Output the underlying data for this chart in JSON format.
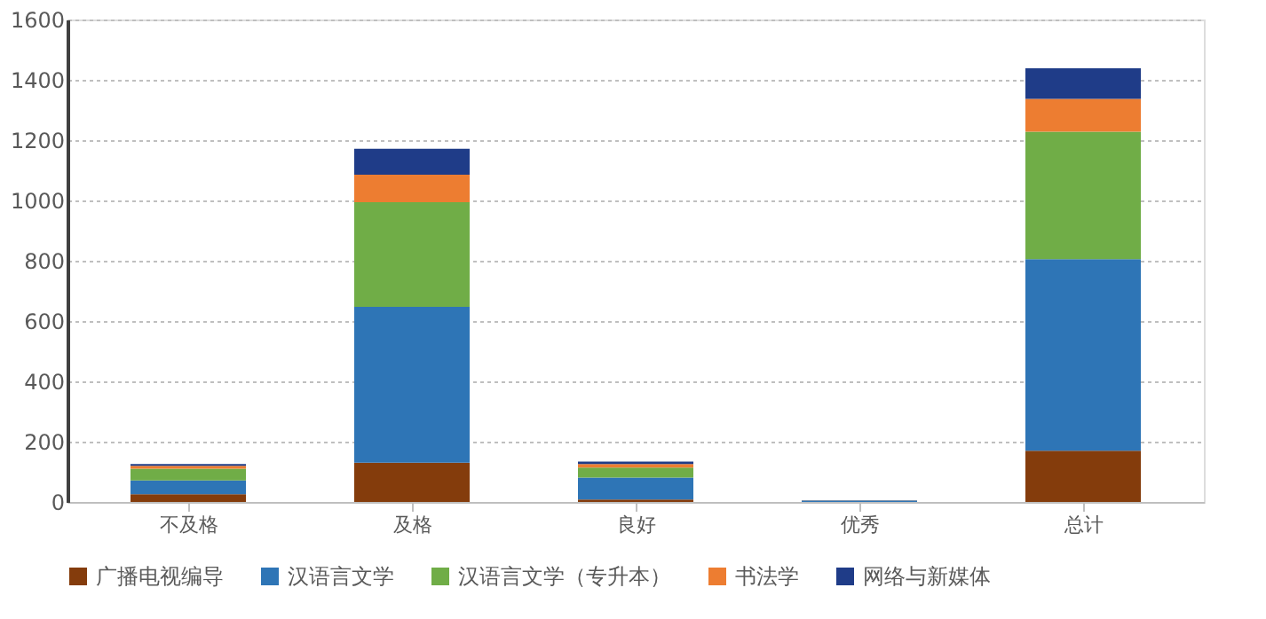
{
  "chart_data": {
    "type": "bar",
    "stacked": true,
    "categories": [
      "不及格",
      "及格",
      "良好",
      "优秀",
      "总计"
    ],
    "series": [
      {
        "name": "广播电视编导",
        "color": "#843c0c",
        "values": [
          26,
          130,
          8,
          0,
          170
        ]
      },
      {
        "name": "汉语言文学",
        "color": "#2e75b6",
        "values": [
          45,
          517,
          73,
          3,
          635
        ]
      },
      {
        "name": "汉语言文学（专升本）",
        "color": "#70ad47",
        "values": [
          39,
          347,
          33,
          1,
          423
        ]
      },
      {
        "name": "书法学",
        "color": "#ed7d31",
        "values": [
          10,
          91,
          12,
          0,
          109
        ]
      },
      {
        "name": "网络与新媒体",
        "color": "#1f3c88",
        "values": [
          6,
          86,
          8,
          1,
          101
        ]
      }
    ],
    "ylim": [
      0,
      1600
    ],
    "yticks": [
      0,
      200,
      400,
      600,
      800,
      1000,
      1200,
      1400,
      1600
    ],
    "grid": "y",
    "legend": "bottom"
  }
}
